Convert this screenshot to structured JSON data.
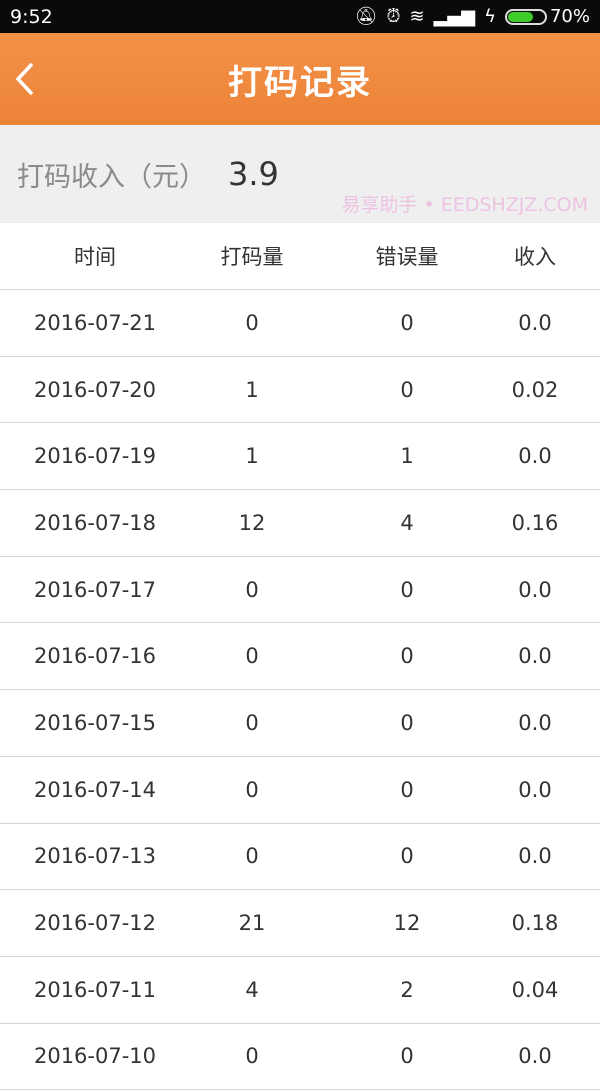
{
  "status_bar": {
    "time": "9:52",
    "battery": "70%",
    "battery_level": 0.7,
    "icons": [
      "mute-icon",
      "alarm-icon",
      "wifi-icon",
      "signal-icon",
      "charging-icon"
    ]
  },
  "header": {
    "title": "打码记录",
    "back_icon": "chevron-left-icon",
    "color": "#f08a40"
  },
  "summary": {
    "label": "打码收入（元）",
    "value": "3.9"
  },
  "table": {
    "columns": [
      "时间",
      "打码量",
      "错误量",
      "收入"
    ],
    "rows": [
      [
        "2016-07-21",
        "0",
        "0",
        "0.0"
      ],
      [
        "2016-07-20",
        "1",
        "0",
        "0.02"
      ],
      [
        "2016-07-19",
        "1",
        "1",
        "0.0"
      ],
      [
        "2016-07-18",
        "12",
        "4",
        "0.16"
      ],
      [
        "2016-07-17",
        "0",
        "0",
        "0.0"
      ],
      [
        "2016-07-16",
        "0",
        "0",
        "0.0"
      ],
      [
        "2016-07-15",
        "0",
        "0",
        "0.0"
      ],
      [
        "2016-07-14",
        "0",
        "0",
        "0.0"
      ],
      [
        "2016-07-13",
        "0",
        "0",
        "0.0"
      ],
      [
        "2016-07-12",
        "21",
        "12",
        "0.18"
      ],
      [
        "2016-07-11",
        "4",
        "2",
        "0.04"
      ],
      [
        "2016-07-10",
        "0",
        "0",
        "0.0"
      ]
    ]
  },
  "watermark": "易享助手 • EEDSHZJZ.COM"
}
